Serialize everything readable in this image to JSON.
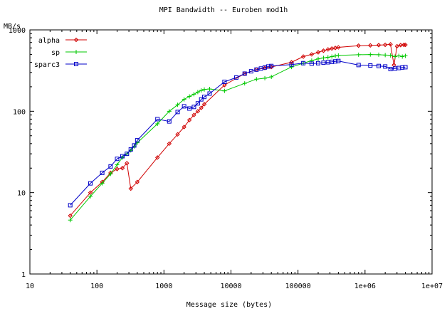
{
  "chart_data": {
    "type": "line",
    "title": "MPI Bandwidth -- Euroben mod1h",
    "xlabel": "Message size (bytes)",
    "ylabel": "MB/s",
    "x_scale": "log",
    "y_scale": "log",
    "xlim": [
      10,
      10000000
    ],
    "ylim": [
      1,
      1000
    ],
    "x_ticks": [
      {
        "value": 10,
        "label": "10"
      },
      {
        "value": 100,
        "label": "100"
      },
      {
        "value": 1000,
        "label": "1000"
      },
      {
        "value": 10000,
        "label": "10000"
      },
      {
        "value": 100000,
        "label": "100000"
      },
      {
        "value": 1000000,
        "label": "1e+06"
      },
      {
        "value": 10000000,
        "label": "1e+07"
      }
    ],
    "y_ticks": [
      {
        "value": 1,
        "label": "1"
      },
      {
        "value": 10,
        "label": "10"
      },
      {
        "value": 100,
        "label": "100"
      },
      {
        "value": 1000,
        "label": "1000"
      }
    ],
    "grid": false,
    "legend_position": "top-left",
    "series": [
      {
        "name": "alpha",
        "color": "#d00000",
        "marker": "diamond",
        "points": [
          [
            40,
            5.2
          ],
          [
            80,
            10
          ],
          [
            120,
            13.5
          ],
          [
            160,
            17.5
          ],
          [
            200,
            19.5
          ],
          [
            240,
            20
          ],
          [
            280,
            23
          ],
          [
            320,
            11.2
          ],
          [
            400,
            13.5
          ],
          [
            800,
            27
          ],
          [
            1200,
            40
          ],
          [
            1600,
            52
          ],
          [
            2000,
            64
          ],
          [
            2400,
            78
          ],
          [
            2800,
            90
          ],
          [
            3200,
            100
          ],
          [
            3600,
            110
          ],
          [
            4000,
            122
          ],
          [
            8000,
            210
          ],
          [
            16000,
            290
          ],
          [
            24000,
            325
          ],
          [
            32000,
            340
          ],
          [
            40000,
            350
          ],
          [
            80000,
            400
          ],
          [
            120000,
            470
          ],
          [
            160000,
            500
          ],
          [
            200000,
            530
          ],
          [
            240000,
            555
          ],
          [
            280000,
            575
          ],
          [
            320000,
            590
          ],
          [
            360000,
            600
          ],
          [
            400000,
            610
          ],
          [
            800000,
            640
          ],
          [
            1200000,
            645
          ],
          [
            1600000,
            650
          ],
          [
            2000000,
            655
          ],
          [
            2400000,
            665
          ],
          [
            2700000,
            370
          ],
          [
            3000000,
            630
          ],
          [
            3400000,
            650
          ],
          [
            3800000,
            655
          ],
          [
            4000000,
            655
          ]
        ]
      },
      {
        "name": "sp",
        "color": "#00c800",
        "marker": "plus",
        "points": [
          [
            40,
            4.6
          ],
          [
            80,
            9
          ],
          [
            120,
            13
          ],
          [
            160,
            17
          ],
          [
            200,
            22
          ],
          [
            240,
            27
          ],
          [
            280,
            30
          ],
          [
            320,
            33
          ],
          [
            360,
            37
          ],
          [
            400,
            41
          ],
          [
            800,
            70
          ],
          [
            1200,
            100
          ],
          [
            1600,
            120
          ],
          [
            2000,
            140
          ],
          [
            2400,
            152
          ],
          [
            2800,
            162
          ],
          [
            3200,
            172
          ],
          [
            3600,
            180
          ],
          [
            4000,
            185
          ],
          [
            4800,
            188
          ],
          [
            8000,
            178
          ],
          [
            16000,
            220
          ],
          [
            24000,
            248
          ],
          [
            32000,
            255
          ],
          [
            40000,
            265
          ],
          [
            80000,
            350
          ],
          [
            120000,
            390
          ],
          [
            160000,
            420
          ],
          [
            200000,
            440
          ],
          [
            240000,
            452
          ],
          [
            280000,
            460
          ],
          [
            320000,
            470
          ],
          [
            360000,
            478
          ],
          [
            400000,
            485
          ],
          [
            800000,
            495
          ],
          [
            1200000,
            498
          ],
          [
            1600000,
            495
          ],
          [
            2000000,
            490
          ],
          [
            2400000,
            485
          ],
          [
            2800000,
            470
          ],
          [
            3200000,
            480
          ],
          [
            3600000,
            470
          ],
          [
            4000000,
            480
          ]
        ]
      },
      {
        "name": "sparc3",
        "color": "#0000c8",
        "marker": "square",
        "points": [
          [
            40,
            7
          ],
          [
            80,
            13
          ],
          [
            120,
            17.5
          ],
          [
            160,
            21
          ],
          [
            200,
            26
          ],
          [
            240,
            28
          ],
          [
            280,
            30
          ],
          [
            320,
            34
          ],
          [
            360,
            38
          ],
          [
            400,
            44
          ],
          [
            800,
            80
          ],
          [
            1200,
            75
          ],
          [
            1600,
            98
          ],
          [
            2000,
            115
          ],
          [
            2400,
            108
          ],
          [
            2800,
            113
          ],
          [
            3200,
            125
          ],
          [
            3600,
            140
          ],
          [
            4000,
            150
          ],
          [
            4800,
            165
          ],
          [
            8000,
            230
          ],
          [
            12000,
            260
          ],
          [
            16000,
            290
          ],
          [
            20000,
            310
          ],
          [
            24000,
            325
          ],
          [
            28000,
            335
          ],
          [
            32000,
            345
          ],
          [
            36000,
            355
          ],
          [
            40000,
            360
          ],
          [
            80000,
            375
          ],
          [
            120000,
            390
          ],
          [
            160000,
            385
          ],
          [
            200000,
            390
          ],
          [
            240000,
            395
          ],
          [
            280000,
            400
          ],
          [
            320000,
            405
          ],
          [
            360000,
            410
          ],
          [
            400000,
            415
          ],
          [
            800000,
            370
          ],
          [
            1200000,
            365
          ],
          [
            1600000,
            360
          ],
          [
            2000000,
            355
          ],
          [
            2400000,
            330
          ],
          [
            2800000,
            335
          ],
          [
            3200000,
            340
          ],
          [
            3600000,
            345
          ],
          [
            4000000,
            348
          ]
        ]
      }
    ]
  }
}
